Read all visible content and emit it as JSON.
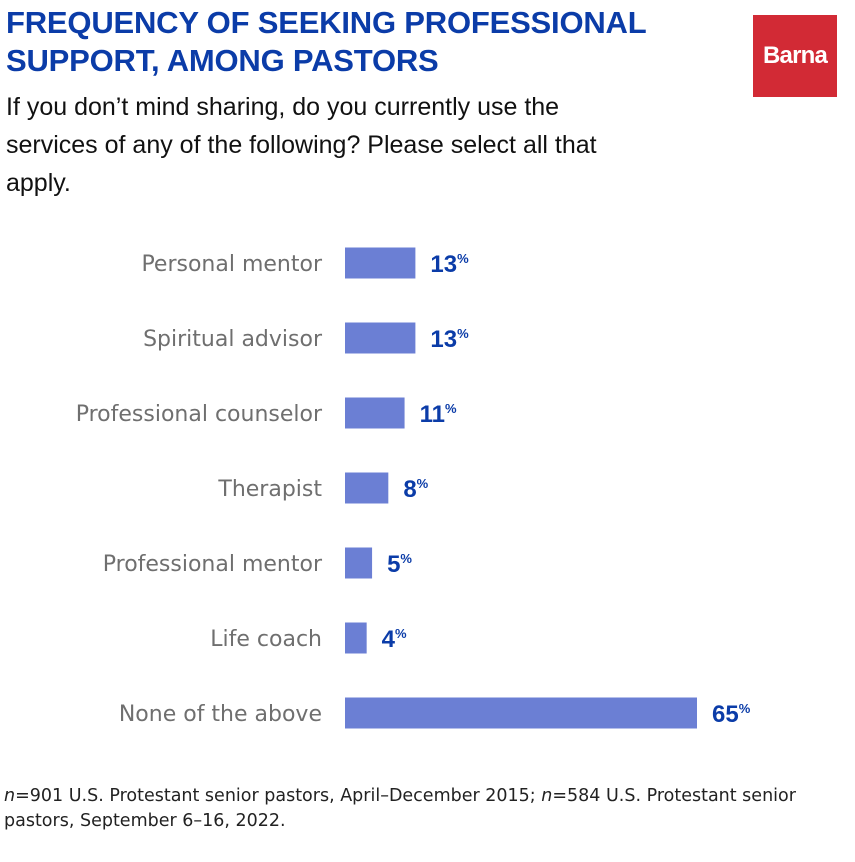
{
  "title": "FREQUENCY OF SEEKING PROFESSIONAL SUPPORT, AMONG PASTORS",
  "subtitle": "If you don’t mind sharing, do you currently use the services of any of the following? Please select all that apply.",
  "logo": {
    "text": "Barna",
    "color": "#d22a35"
  },
  "footnote": {
    "n1_symbol": "n",
    "part1": "=901 U.S. Protestant senior pastors, April–December 2015; ",
    "n2_symbol": "n",
    "part2": "=584 U.S. Protestant senior pastors, September 6–16, 2022."
  },
  "colors": {
    "bar": "#6b7fd4",
    "title": "#0b3ca8",
    "value": "#0b3ca8",
    "label": "#6f6f6f"
  },
  "chart_data": {
    "type": "bar",
    "orientation": "horizontal",
    "categories": [
      "Personal mentor",
      "Spiritual advisor",
      "Professional counselor",
      "Therapist",
      "Professional mentor",
      "Life coach",
      "None of the above"
    ],
    "values": [
      13,
      13,
      11,
      8,
      5,
      4,
      65
    ],
    "value_suffix": "%",
    "xlim": [
      0,
      65
    ],
    "title": "FREQUENCY OF SEEKING PROFESSIONAL SUPPORT, AMONG PASTORS",
    "xlabel": "",
    "ylabel": ""
  }
}
